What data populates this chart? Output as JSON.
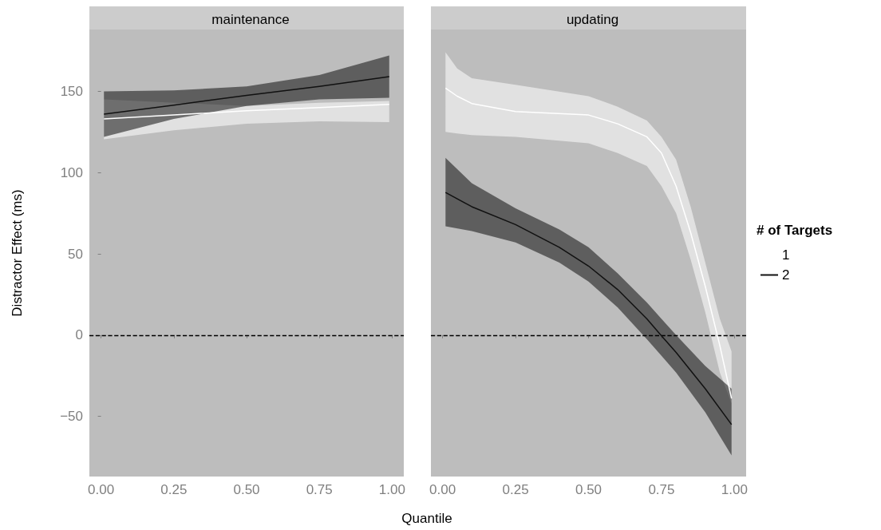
{
  "chart_data": [
    {
      "type": "line",
      "title": "maintenance",
      "ylabel": "Distractor Effect (ms)",
      "xlabel": "Quantile",
      "xlim": [
        -0.04,
        1.04
      ],
      "ylim": [
        -87,
        188
      ],
      "xticks": [
        {
          "value": 0,
          "label": "0.00"
        },
        {
          "value": 0.25,
          "label": "0.25"
        },
        {
          "value": 0.5,
          "label": "0.50"
        },
        {
          "value": 0.75,
          "label": "0.75"
        },
        {
          "value": 1,
          "label": "1.00"
        }
      ],
      "yticks": [
        {
          "value": -50,
          "label": "−50"
        },
        0,
        50,
        100,
        150
      ],
      "grid": false,
      "legend": false,
      "ref_lines": [
        {
          "axis": "y",
          "value": 0,
          "color": "#000000",
          "line_style": "dashed"
        }
      ],
      "series": [
        {
          "color": "#ffffff",
          "x": [
            0.01,
            0.25,
            0.5,
            0.75,
            0.99
          ],
          "values": [
            133,
            135.5,
            138,
            140,
            142
          ],
          "lower": [
            120.5,
            126,
            130,
            131.5,
            131
          ],
          "upper": [
            145,
            143,
            141,
            143,
            144
          ]
        },
        {
          "color": "#111111",
          "x": [
            0.01,
            0.25,
            0.5,
            0.75,
            0.99
          ],
          "values": [
            136,
            141.5,
            147.5,
            153,
            159
          ],
          "lower": [
            122,
            133,
            141,
            145,
            146
          ],
          "upper": [
            150,
            150.5,
            153,
            160,
            172
          ]
        }
      ]
    },
    {
      "type": "line",
      "title": "updating",
      "xlim": [
        -0.04,
        1.04
      ],
      "ylim": [
        -87,
        188
      ],
      "xticks": [
        {
          "value": 0,
          "label": "0.00"
        },
        {
          "value": 0.25,
          "label": "0.25"
        },
        {
          "value": 0.5,
          "label": "0.50"
        },
        {
          "value": 0.75,
          "label": "0.75"
        },
        {
          "value": 1,
          "label": "1.00"
        }
      ],
      "tick_labels": "x",
      "grid": false,
      "legend": "right",
      "legend_title": "# of Targets",
      "ref_lines": [
        {
          "axis": "y",
          "value": 0,
          "color": "#000000",
          "line_style": "dashed"
        }
      ],
      "series": [
        {
          "name": "1",
          "color": "#ffffff",
          "x": [
            0.01,
            0.05,
            0.1,
            0.25,
            0.5,
            0.6,
            0.7,
            0.75,
            0.8,
            0.85,
            0.9,
            0.95,
            0.99
          ],
          "values": [
            152,
            147,
            142.5,
            137.5,
            135.4,
            130,
            122,
            112,
            91.6,
            63,
            30,
            -6.5,
            -39
          ],
          "lower": [
            125,
            124,
            123,
            122,
            118,
            112,
            104,
            91.6,
            75,
            46.5,
            14,
            -23,
            -42
          ],
          "upper": [
            174,
            164,
            158,
            154,
            147,
            140.5,
            132,
            122,
            108,
            79,
            44.6,
            10,
            -10
          ]
        },
        {
          "name": "2",
          "color": "#111111",
          "x": [
            0.01,
            0.1,
            0.25,
            0.4,
            0.5,
            0.6,
            0.7,
            0.75,
            0.8,
            0.9,
            0.99
          ],
          "values": [
            87.8,
            79,
            68,
            54,
            42.5,
            28,
            10,
            -0.4,
            -10.6,
            -33,
            -55
          ],
          "lower": [
            67,
            64,
            57,
            44.6,
            33,
            17,
            -2.5,
            -12.7,
            -23,
            -47.5,
            -74
          ],
          "upper": [
            109,
            93.5,
            78,
            65,
            54,
            38,
            20,
            10,
            0,
            -19,
            -33
          ]
        }
      ]
    }
  ]
}
